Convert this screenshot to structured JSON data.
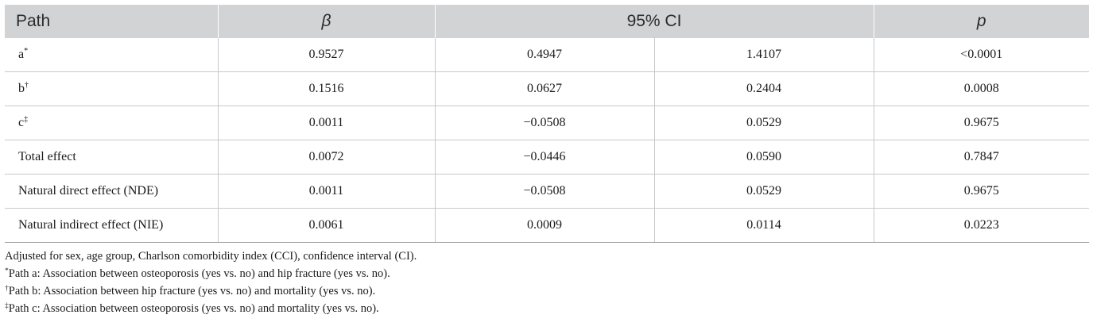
{
  "table": {
    "headers": {
      "path": "Path",
      "beta": "β",
      "ci": "95% CI",
      "p": "p"
    },
    "rows": [
      {
        "path": "a",
        "mark": "*",
        "beta": "0.9527",
        "ci_low": "0.4947",
        "ci_high": "1.4107",
        "p": "<0.0001"
      },
      {
        "path": "b",
        "mark": "†",
        "beta": "0.1516",
        "ci_low": "0.0627",
        "ci_high": "0.2404",
        "p": "0.0008"
      },
      {
        "path": "c",
        "mark": "‡",
        "beta": "0.0011",
        "ci_low": "−0.0508",
        "ci_high": "0.0529",
        "p": "0.9675"
      },
      {
        "path": "Total effect",
        "mark": "",
        "beta": "0.0072",
        "ci_low": "−0.0446",
        "ci_high": "0.0590",
        "p": "0.7847"
      },
      {
        "path": "Natural direct effect (NDE)",
        "mark": "",
        "beta": "0.0011",
        "ci_low": "−0.0508",
        "ci_high": "0.0529",
        "p": "0.9675"
      },
      {
        "path": "Natural indirect effect (NIE)",
        "mark": "",
        "beta": "0.0061",
        "ci_low": "0.0009",
        "ci_high": "0.0114",
        "p": "0.0223"
      }
    ]
  },
  "notes": {
    "adjusted": "Adjusted for sex, age group, Charlson comorbidity index (CCI), confidence interval (CI).",
    "footnotes": [
      {
        "mark": "*",
        "text": "Path a: Association between osteoporosis (yes vs. no) and hip fracture (yes vs. no)."
      },
      {
        "mark": "†",
        "text": "Path b: Association between hip fracture (yes vs. no) and mortality (yes vs. no)."
      },
      {
        "mark": "‡",
        "text": "Path c: Association between osteoporosis (yes vs. no) and mortality (yes vs. no)."
      }
    ]
  }
}
